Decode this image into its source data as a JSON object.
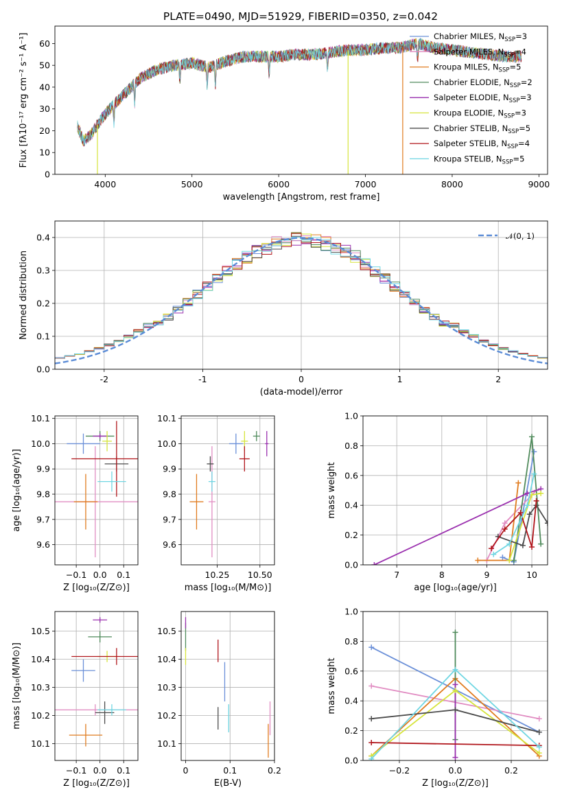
{
  "title": "PLATE=0490, MJD=51929, FIBERID=0350, z=0.042",
  "colors": {
    "Chabrier MILES": "#6a8fd8",
    "Salpeter MILES": "#e18cc2",
    "Kroupa MILES": "#e07b1e",
    "Chabrier ELODIE": "#4f8a5b",
    "Salpeter ELODIE": "#9a2fae",
    "Kroupa ELODIE": "#d6e43a",
    "Chabrier STELIB": "#4b4b4b",
    "Salpeter STELIB": "#b0141a",
    "Kroupa STELIB": "#6fd6e2"
  },
  "chart_data": [
    {
      "type": "line",
      "id": "spectrum",
      "title": "PLATE=0490, MJD=51929, FIBERID=0350, z=0.042",
      "xlabel": "wavelength [Angstrom, rest frame]",
      "ylabel": "Flux [fλ10⁻¹⁷ erg cm⁻² s⁻¹ A⁻¹]",
      "xlim": [
        3420,
        9100
      ],
      "ylim": [
        0,
        68
      ],
      "xticks": [
        4000,
        5000,
        6000,
        7000,
        8000,
        9000
      ],
      "yticks": [
        0,
        10,
        20,
        30,
        40,
        50,
        60
      ],
      "grid": false,
      "legend": "top-right",
      "legend_entries": [
        "Chabrier MILES, N",
        "Salpeter MILES, N",
        "Kroupa MILES, N",
        "Chabrier ELODIE, N",
        "Salpeter ELODIE, N",
        "Kroupa ELODIE, N",
        "Chabrier STELIB, N",
        "Salpeter STELIB, N",
        "Kroupa STELIB, N"
      ],
      "legend_sub": "SSP",
      "legend_nssp": [
        "=3",
        "=4",
        "=5",
        "=2",
        "=3",
        "=3",
        "=5",
        "=4",
        "=5"
      ],
      "continuum": [
        [
          3680,
          22
        ],
        [
          3750,
          15
        ],
        [
          3850,
          19
        ],
        [
          3950,
          25
        ],
        [
          4050,
          30
        ],
        [
          4200,
          36
        ],
        [
          4400,
          44
        ],
        [
          4600,
          48
        ],
        [
          4800,
          50
        ],
        [
          5000,
          51
        ],
        [
          5200,
          49
        ],
        [
          5400,
          52
        ],
        [
          5600,
          54
        ],
        [
          5800,
          54
        ],
        [
          6000,
          54
        ],
        [
          6200,
          55
        ],
        [
          6400,
          55
        ],
        [
          6600,
          56
        ],
        [
          6800,
          57
        ],
        [
          7000,
          57
        ],
        [
          7200,
          58
        ],
        [
          7400,
          58
        ],
        [
          7600,
          60
        ],
        [
          7800,
          58
        ],
        [
          8000,
          57
        ],
        [
          8200,
          56
        ],
        [
          8400,
          55
        ],
        [
          8600,
          54
        ],
        [
          8800,
          54
        ]
      ],
      "model_end": [
        [
          7700,
          60
        ],
        [
          7900,
          59
        ],
        [
          8000,
          58
        ]
      ],
      "dropouts": [
        {
          "x": 3910,
          "series": "Kroupa ELODIE"
        },
        {
          "x": 6800,
          "series": "Kroupa ELODIE"
        },
        {
          "x": 7430,
          "series": "Kroupa MILES"
        }
      ]
    },
    {
      "type": "line",
      "id": "residuals",
      "xlabel": "(data-model)/error",
      "ylabel": "Normed distribution",
      "xlim": [
        -2.5,
        2.5
      ],
      "ylim": [
        0,
        0.45
      ],
      "xticks": [
        -2,
        -1,
        0,
        1,
        2
      ],
      "yticks": [
        0.0,
        0.1,
        0.2,
        0.3,
        0.4
      ],
      "grid": true,
      "legend": "top-right",
      "legend_entries": [
        "𝒩(0, 1)"
      ]
    },
    {
      "type": "scatter",
      "id": "age-vs-Z",
      "xlabel": "Z [log₁₀(Z/Z⊙)]",
      "ylabel": "age [log₁₀(age/yr)]",
      "xlim": [
        -0.19,
        0.16
      ],
      "ylim": [
        9.52,
        10.11
      ],
      "xticks": [
        -0.1,
        0.0,
        0.1
      ],
      "xtick_labels": [
        "−0.1",
        "0.0",
        "0.1"
      ],
      "yticks": [
        9.6,
        9.7,
        9.8,
        9.9,
        10.0,
        10.1
      ],
      "grid": true,
      "points": [
        {
          "name": "Chabrier MILES",
          "x": -0.07,
          "y": 10.0,
          "xerr": 0.07,
          "yerr": 0.04
        },
        {
          "name": "Salpeter MILES",
          "x": -0.02,
          "y": 9.77,
          "xerr": 0.18,
          "yerr": 0.22
        },
        {
          "name": "Kroupa MILES",
          "x": -0.06,
          "y": 9.77,
          "xerr": 0.05,
          "yerr": 0.11
        },
        {
          "name": "Chabrier ELODIE",
          "x": 0.0,
          "y": 10.03,
          "xerr": 0.06,
          "yerr": 0.02
        },
        {
          "name": "Salpeter ELODIE",
          "x": 0.0,
          "y": 10.03,
          "xerr": 0.03,
          "yerr": 0.01
        },
        {
          "name": "Kroupa ELODIE",
          "x": 0.03,
          "y": 10.01,
          "xerr": 0.02,
          "yerr": 0.04
        },
        {
          "name": "Chabrier STELIB",
          "x": 0.07,
          "y": 9.92,
          "xerr": 0.05,
          "yerr": 0.03
        },
        {
          "name": "Salpeter STELIB",
          "x": 0.07,
          "y": 9.94,
          "xerr": 0.19,
          "yerr": 0.15
        },
        {
          "name": "Kroupa STELIB",
          "x": 0.05,
          "y": 9.85,
          "xerr": 0.06,
          "yerr": 0.04
        }
      ]
    },
    {
      "type": "scatter",
      "id": "age-vs-mass",
      "xlabel": "mass [log₁₀(M/M⊙)]",
      "xlim": [
        10.04,
        10.585
      ],
      "ylim": [
        9.52,
        10.11
      ],
      "xticks": [
        10.25,
        10.5
      ],
      "xtick_labels": [
        "10.25",
        "10.50"
      ],
      "yticks": [
        9.6,
        9.7,
        9.8,
        9.9,
        10.0,
        10.1
      ],
      "grid": true,
      "points": [
        {
          "name": "Chabrier MILES",
          "x": 10.36,
          "y": 10.0,
          "xerr": 0.04,
          "yerr": 0.04
        },
        {
          "name": "Salpeter MILES",
          "x": 10.22,
          "y": 9.77,
          "xerr": 0.02,
          "yerr": 0.22
        },
        {
          "name": "Kroupa MILES",
          "x": 10.13,
          "y": 9.77,
          "xerr": 0.04,
          "yerr": 0.11
        },
        {
          "name": "Chabrier ELODIE",
          "x": 10.48,
          "y": 10.03,
          "xerr": 0.02,
          "yerr": 0.02
        },
        {
          "name": "Salpeter ELODIE",
          "x": 10.54,
          "y": 10.0,
          "xerr": 0.01,
          "yerr": 0.05
        },
        {
          "name": "Kroupa ELODIE",
          "x": 10.41,
          "y": 10.01,
          "xerr": 0.02,
          "yerr": 0.04
        },
        {
          "name": "Chabrier STELIB",
          "x": 10.21,
          "y": 9.92,
          "xerr": 0.02,
          "yerr": 0.03
        },
        {
          "name": "Salpeter STELIB",
          "x": 10.41,
          "y": 9.94,
          "xerr": 0.03,
          "yerr": 0.05
        },
        {
          "name": "Kroupa STELIB",
          "x": 10.22,
          "y": 9.85,
          "xerr": 0.02,
          "yerr": 0.04
        }
      ]
    },
    {
      "type": "line",
      "id": "mass-weight-vs-age",
      "xlabel": "age  [log₁₀(age/yr)]",
      "ylabel": "mass weight",
      "xlim": [
        6.25,
        10.35
      ],
      "ylim": [
        0,
        1
      ],
      "xticks": [
        7,
        8,
        9,
        10
      ],
      "yticks": [
        0.0,
        0.2,
        0.4,
        0.6,
        0.8,
        1.0
      ],
      "grid": true,
      "series": [
        {
          "name": "Chabrier MILES",
          "x": [
            9.35,
            9.6,
            10.05
          ],
          "y": [
            0.05,
            0.02,
            0.76
          ]
        },
        {
          "name": "Salpeter MILES",
          "x": [
            9.0,
            9.4,
            10.1
          ],
          "y": [
            0.03,
            0.28,
            0.5
          ]
        },
        {
          "name": "Kroupa MILES",
          "x": [
            8.8,
            9.5,
            9.7
          ],
          "y": [
            0.03,
            0.03,
            0.55
          ]
        },
        {
          "name": "Chabrier ELODIE",
          "x": [
            9.6,
            10.0,
            10.2
          ],
          "y": [
            0.03,
            0.86,
            0.14
          ]
        },
        {
          "name": "Salpeter ELODIE",
          "x": [
            6.5,
            9.9,
            10.2
          ],
          "y": [
            0.0,
            0.48,
            0.51
          ]
        },
        {
          "name": "Kroupa ELODIE",
          "x": [
            9.5,
            10.0,
            10.2
          ],
          "y": [
            0.03,
            0.47,
            0.48
          ]
        },
        {
          "name": "Chabrier STELIB",
          "x": [
            9.25,
            9.8,
            9.95,
            10.1,
            10.35
          ],
          "y": [
            0.19,
            0.13,
            0.34,
            0.4,
            0.28
          ]
        },
        {
          "name": "Salpeter STELIB",
          "x": [
            9.1,
            9.4,
            9.75,
            10.0,
            10.1
          ],
          "y": [
            0.11,
            0.24,
            0.35,
            0.12,
            0.43
          ]
        },
        {
          "name": "Kroupa STELIB",
          "x": [
            9.15,
            9.5,
            9.9,
            10.05
          ],
          "y": [
            0.07,
            0.14,
            0.4,
            0.61
          ]
        }
      ]
    },
    {
      "type": "scatter",
      "id": "mass-vs-Z",
      "xlabel": "Z [log₁₀(Z/Z⊙)]",
      "ylabel": "mass [log₁₀(M/M⊙)]",
      "xlim": [
        -0.19,
        0.16
      ],
      "ylim": [
        10.04,
        10.57
      ],
      "xticks": [
        -0.1,
        0.0,
        0.1
      ],
      "xtick_labels": [
        "−0.1",
        "0.0",
        "0.1"
      ],
      "yticks": [
        10.1,
        10.2,
        10.3,
        10.4,
        10.5
      ],
      "grid": true,
      "points": [
        {
          "name": "Chabrier MILES",
          "x": -0.07,
          "y": 10.36,
          "xerr": 0.05,
          "yerr": 0.04
        },
        {
          "name": "Salpeter MILES",
          "x": -0.02,
          "y": 10.22,
          "xerr": 0.18,
          "yerr": 0.02
        },
        {
          "name": "Kroupa MILES",
          "x": -0.06,
          "y": 10.13,
          "xerr": 0.07,
          "yerr": 0.04
        },
        {
          "name": "Chabrier ELODIE",
          "x": 0.0,
          "y": 10.48,
          "xerr": 0.05,
          "yerr": 0.02
        },
        {
          "name": "Salpeter ELODIE",
          "x": 0.0,
          "y": 10.54,
          "xerr": 0.03,
          "yerr": 0.01
        },
        {
          "name": "Kroupa ELODIE",
          "x": 0.03,
          "y": 10.41,
          "xerr": 0.04,
          "yerr": 0.02
        },
        {
          "name": "Chabrier STELIB",
          "x": 0.02,
          "y": 10.21,
          "xerr": 0.04,
          "yerr": 0.04
        },
        {
          "name": "Salpeter STELIB",
          "x": 0.07,
          "y": 10.41,
          "xerr": 0.19,
          "yerr": 0.03
        },
        {
          "name": "Kroupa STELIB",
          "x": 0.05,
          "y": 10.22,
          "xerr": 0.06,
          "yerr": 0.02
        }
      ]
    },
    {
      "type": "scatter",
      "id": "mass-vs-EBV",
      "xlabel": "E(B-V)",
      "xlim": [
        -0.01,
        0.2
      ],
      "ylim": [
        10.04,
        10.57
      ],
      "xticks": [
        0.0,
        0.1,
        0.2
      ],
      "yticks": [
        10.1,
        10.2,
        10.3,
        10.4,
        10.5
      ],
      "grid": true,
      "points": [
        {
          "name": "Chabrier MILES",
          "x": 0.088,
          "y": 10.32,
          "yerr": 0.07
        },
        {
          "name": "Salpeter MILES",
          "x": 0.19,
          "y": 10.19,
          "yerr": 0.06
        },
        {
          "name": "Kroupa MILES",
          "x": 0.186,
          "y": 10.11,
          "yerr": 0.06
        },
        {
          "name": "Chabrier ELODIE",
          "x": 0.0,
          "y": 10.48,
          "yerr": 0.05
        },
        {
          "name": "Salpeter ELODIE",
          "x": 0.0,
          "y": 10.53,
          "yerr": 0.02
        },
        {
          "name": "Kroupa ELODIE",
          "x": 0.0,
          "y": 10.41,
          "yerr": 0.03
        },
        {
          "name": "Chabrier STELIB",
          "x": 0.073,
          "y": 10.19,
          "yerr": 0.04
        },
        {
          "name": "Salpeter STELIB",
          "x": 0.073,
          "y": 10.43,
          "yerr": 0.04
        },
        {
          "name": "Kroupa STELIB",
          "x": 0.097,
          "y": 10.19,
          "yerr": 0.05
        }
      ]
    },
    {
      "type": "line",
      "id": "mass-weight-vs-Z",
      "xlabel": "Z [log₁₀(Z/Z⊙)]",
      "ylabel": "mass weight",
      "xlim": [
        -0.33,
        0.33
      ],
      "ylim": [
        0,
        1
      ],
      "xticks": [
        -0.2,
        0.0,
        0.2
      ],
      "xtick_labels": [
        "−0.2",
        "0.0",
        "0.2"
      ],
      "yticks": [
        0.0,
        0.2,
        0.4,
        0.6,
        0.8,
        1.0
      ],
      "grid": true,
      "series": [
        {
          "name": "Chabrier MILES",
          "x": [
            -0.3,
            0.3
          ],
          "y": [
            0.76,
            0.19
          ]
        },
        {
          "name": "Salpeter MILES",
          "x": [
            -0.3,
            0.3
          ],
          "y": [
            0.5,
            0.28
          ]
        },
        {
          "name": "Kroupa MILES",
          "x": [
            -0.3,
            0.0,
            0.3
          ],
          "y": [
            0.03,
            0.55,
            0.03
          ]
        },
        {
          "name": "Chabrier ELODIE",
          "x": [
            0.0,
            0.0
          ],
          "y": [
            0.14,
            0.86
          ]
        },
        {
          "name": "Salpeter ELODIE",
          "x": [
            0.0,
            0.0
          ],
          "y": [
            0.02,
            0.51
          ]
        },
        {
          "name": "Kroupa ELODIE",
          "x": [
            -0.3,
            0.0,
            0.3
          ],
          "y": [
            0.03,
            0.47,
            0.05
          ]
        },
        {
          "name": "Chabrier STELIB",
          "x": [
            -0.3,
            0.0,
            0.3
          ],
          "y": [
            0.28,
            0.34,
            0.19
          ]
        },
        {
          "name": "Salpeter STELIB",
          "x": [
            -0.3,
            0.3
          ],
          "y": [
            0.12,
            0.1
          ]
        },
        {
          "name": "Kroupa STELIB",
          "x": [
            -0.3,
            0.0,
            0.3
          ],
          "y": [
            0.01,
            0.61,
            0.09
          ]
        }
      ]
    }
  ]
}
